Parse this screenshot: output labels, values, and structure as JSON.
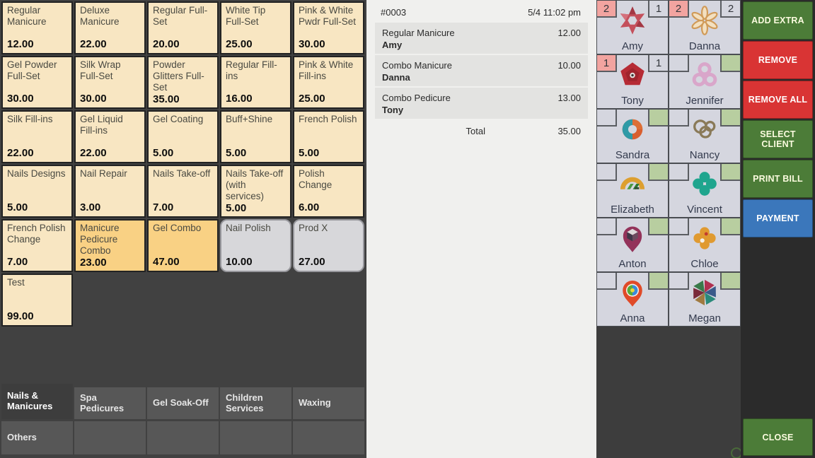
{
  "colors": {
    "btn_green": "#4c7c38",
    "btn_red": "#d93434",
    "btn_blue": "#3b77bb",
    "badge_pink": "#f2a4a0",
    "badge_green": "#b8cea0",
    "service_cream": "#f8e6c2",
    "service_combo": "#f9d184",
    "service_product": "#d7d7da",
    "card_bg": "#d5d6df"
  },
  "services": {
    "buttons": [
      {
        "name": "Regular Manicure",
        "price": "12.00",
        "style": "default"
      },
      {
        "name": "Deluxe Manicure",
        "price": "22.00",
        "style": "default"
      },
      {
        "name": "Regular Full-Set",
        "price": "20.00",
        "style": "default"
      },
      {
        "name": "White Tip Full-Set",
        "price": "25.00",
        "style": "default"
      },
      {
        "name": "Pink & White Pwdr Full-Set",
        "price": "30.00",
        "style": "default"
      },
      {
        "name": "Gel Powder Full-Set",
        "price": "30.00",
        "style": "default"
      },
      {
        "name": "Silk Wrap Full-Set",
        "price": "30.00",
        "style": "default"
      },
      {
        "name": "Powder Glitters Full-Set",
        "price": "35.00",
        "style": "default"
      },
      {
        "name": "Regular Fill-ins",
        "price": "16.00",
        "style": "default"
      },
      {
        "name": "Pink & White Fill-ins",
        "price": "25.00",
        "style": "default"
      },
      {
        "name": "Silk Fill-ins",
        "price": "22.00",
        "style": "default"
      },
      {
        "name": "Gel Liquid Fill-ins",
        "price": "22.00",
        "style": "default"
      },
      {
        "name": "Gel Coating",
        "price": "5.00",
        "style": "default"
      },
      {
        "name": "Buff+Shine",
        "price": "5.00",
        "style": "default"
      },
      {
        "name": "French Polish",
        "price": "5.00",
        "style": "default"
      },
      {
        "name": "Nails Designs",
        "price": "5.00",
        "style": "default"
      },
      {
        "name": "Nail Repair",
        "price": "3.00",
        "style": "default"
      },
      {
        "name": "Nails Take-off",
        "price": "7.00",
        "style": "default"
      },
      {
        "name": "Nails Take-off (with services)",
        "price": "5.00",
        "style": "default"
      },
      {
        "name": "Polish Change",
        "price": "6.00",
        "style": "default"
      },
      {
        "name": "French Polish Change",
        "price": "7.00",
        "style": "default"
      },
      {
        "name": "Manicure Pedicure Combo",
        "price": "23.00",
        "style": "combo"
      },
      {
        "name": "Gel Combo",
        "price": "47.00",
        "style": "combo"
      },
      {
        "name": "Nail Polish",
        "price": "10.00",
        "style": "product"
      },
      {
        "name": "Prod X",
        "price": "27.00",
        "style": "product"
      },
      {
        "name": "Test",
        "price": "99.00",
        "style": "default"
      }
    ],
    "tabs": [
      {
        "label": "Nails & Manicures",
        "row": 1,
        "active": true
      },
      {
        "label": "Spa Pedicures",
        "row": 1,
        "active": false
      },
      {
        "label": "Gel Soak-Off",
        "row": 1,
        "active": false
      },
      {
        "label": "Children Services",
        "row": 1,
        "active": false
      },
      {
        "label": "Waxing",
        "row": 1,
        "active": false
      },
      {
        "label": "Others",
        "row": 2,
        "active": false
      },
      {
        "label": "",
        "row": 2,
        "active": false
      },
      {
        "label": "",
        "row": 2,
        "active": false
      },
      {
        "label": "",
        "row": 2,
        "active": false
      },
      {
        "label": "",
        "row": 2,
        "active": false
      }
    ]
  },
  "receipt": {
    "ticket_number": "#0003",
    "datetime": "5/4 11:02 pm",
    "items": [
      {
        "service": "Regular Manicure",
        "staff": "Amy",
        "price": "12.00"
      },
      {
        "service": "Combo Manicure",
        "staff": "Danna",
        "price": "10.00"
      },
      {
        "service": "Combo Pedicure",
        "staff": "Tony",
        "price": "13.00"
      }
    ],
    "total_label": "Total",
    "total_value": "35.00"
  },
  "staff": [
    {
      "name": "Amy",
      "icon": "pinwheel-star",
      "left_count": "2",
      "right_count": "1",
      "right_green": false
    },
    {
      "name": "Danna",
      "icon": "petal-flower",
      "left_count": "2",
      "right_count": "2",
      "right_green": false
    },
    {
      "name": "Tony",
      "icon": "rose-pentagon",
      "left_count": "1",
      "right_count": "1",
      "right_green": false
    },
    {
      "name": "Jennifer",
      "icon": "trefoil-knot",
      "left_count": "",
      "right_count": "",
      "right_green": true
    },
    {
      "name": "Sandra",
      "icon": "swirl-donut",
      "left_count": "",
      "right_count": "",
      "right_green": true
    },
    {
      "name": "Nancy",
      "icon": "triple-rings",
      "left_count": "",
      "right_count": "",
      "right_green": true
    },
    {
      "name": "Elizabeth",
      "icon": "arch-logo",
      "left_count": "",
      "right_count": "",
      "right_green": true
    },
    {
      "name": "Vincent",
      "icon": "clover",
      "left_count": "",
      "right_count": "",
      "right_green": true
    },
    {
      "name": "Anton",
      "icon": "pin-cube",
      "left_count": "",
      "right_count": "",
      "right_green": true
    },
    {
      "name": "Chloe",
      "icon": "dot-blossom",
      "left_count": "",
      "right_count": "",
      "right_green": true
    },
    {
      "name": "Anna",
      "icon": "pin-rainbow",
      "left_count": "",
      "right_count": "",
      "right_green": true
    },
    {
      "name": "Megan",
      "icon": "hex-pinwheel",
      "left_count": "",
      "right_count": "",
      "right_green": true
    }
  ],
  "actions": [
    {
      "label": "ADD EXTRA",
      "color": "green"
    },
    {
      "label": "REMOVE",
      "color": "red"
    },
    {
      "label": "REMOVE ALL",
      "color": "red"
    },
    {
      "label": "SELECT CLIENT",
      "color": "green"
    },
    {
      "label": "PRINT BILL",
      "color": "green"
    },
    {
      "label": "PAYMENT",
      "color": "blue"
    }
  ],
  "close": {
    "label": "CLOSE"
  }
}
